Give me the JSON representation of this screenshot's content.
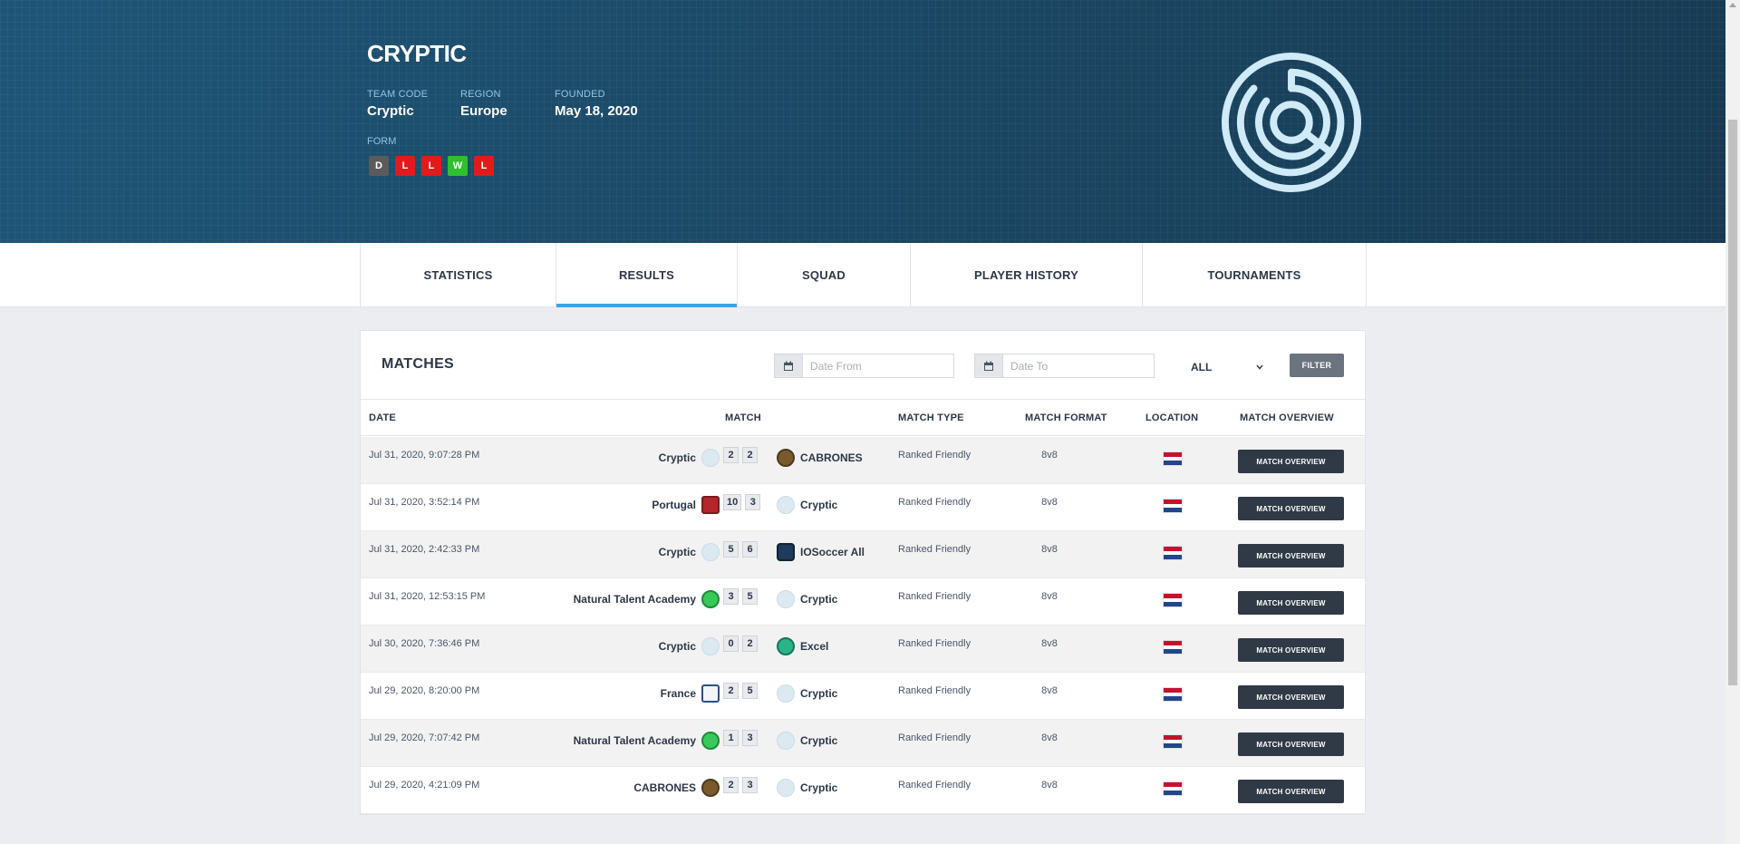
{
  "team": {
    "name": "CRYPTIC",
    "team_code_label": "TEAM CODE",
    "team_code": "Cryptic",
    "region_label": "REGION",
    "region": "Europe",
    "founded_label": "FOUNDED",
    "founded": "May 18, 2020",
    "form_label": "FORM",
    "form": [
      "D",
      "L",
      "L",
      "W",
      "L"
    ]
  },
  "tabs": [
    {
      "label": "STATISTICS"
    },
    {
      "label": "RESULTS",
      "active": true
    },
    {
      "label": "SQUAD"
    },
    {
      "label": "PLAYER HISTORY"
    },
    {
      "label": "TOURNAMENTS"
    }
  ],
  "matches": {
    "title": "MATCHES",
    "date_from_placeholder": "Date From",
    "date_to_placeholder": "Date To",
    "select_value": "ALL",
    "filter_label": "FILTER",
    "columns": {
      "date": "DATE",
      "match": "MATCH",
      "match_type": "MATCH TYPE",
      "match_format": "MATCH FORMAT",
      "location": "LOCATION",
      "match_overview": "MATCH OVERVIEW"
    },
    "button_label": "MATCH OVERVIEW",
    "rows": [
      {
        "date": "Jul 31, 2020, 9:07:28 PM",
        "home": "Cryptic",
        "home_score": "2",
        "away_score": "2",
        "away": "CABRONES",
        "type": "Ranked Friendly",
        "format": "8v8"
      },
      {
        "date": "Jul 31, 2020, 3:52:14 PM",
        "home": "Portugal",
        "home_score": "10",
        "away_score": "3",
        "away": "Cryptic",
        "type": "Ranked Friendly",
        "format": "8v8"
      },
      {
        "date": "Jul 31, 2020, 2:42:33 PM",
        "home": "Cryptic",
        "home_score": "5",
        "away_score": "6",
        "away": "IOSoccer All",
        "type": "Ranked Friendly",
        "format": "8v8"
      },
      {
        "date": "Jul 31, 2020, 12:53:15 PM",
        "home": "Natural Talent Academy",
        "home_score": "3",
        "away_score": "5",
        "away": "Cryptic",
        "type": "Ranked Friendly",
        "format": "8v8"
      },
      {
        "date": "Jul 30, 2020, 7:36:46 PM",
        "home": "Cryptic",
        "home_score": "0",
        "away_score": "2",
        "away": "Excel",
        "type": "Ranked Friendly",
        "format": "8v8"
      },
      {
        "date": "Jul 29, 2020, 8:20:00 PM",
        "home": "France",
        "home_score": "2",
        "away_score": "5",
        "away": "Cryptic",
        "type": "Ranked Friendly",
        "format": "8v8"
      },
      {
        "date": "Jul 29, 2020, 7:07:42 PM",
        "home": "Natural Talent Academy",
        "home_score": "1",
        "away_score": "3",
        "away": "Cryptic",
        "type": "Ranked Friendly",
        "format": "8v8"
      },
      {
        "date": "Jul 29, 2020, 4:21:09 PM",
        "home": "CABRONES",
        "home_score": "2",
        "away_score": "3",
        "away": "Cryptic",
        "type": "Ranked Friendly",
        "format": "8v8"
      }
    ]
  }
}
